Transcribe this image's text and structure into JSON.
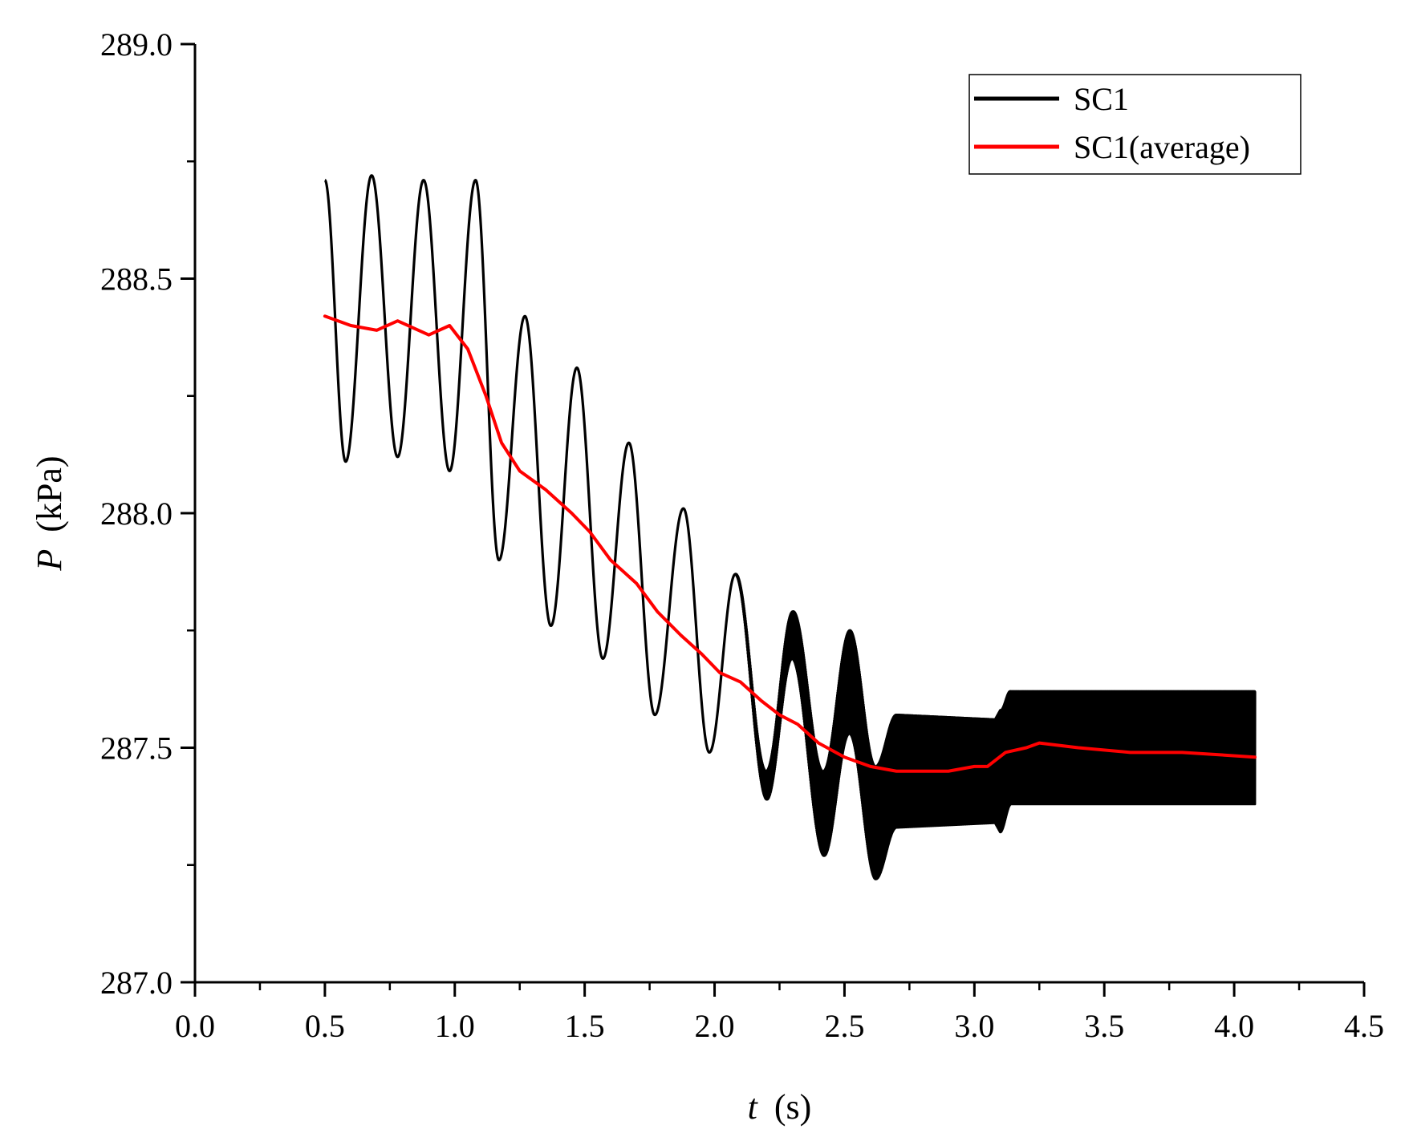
{
  "chart_data": {
    "type": "line",
    "title": "",
    "xlabel": {
      "symbol": "t",
      "unit": "(s)"
    },
    "ylabel": {
      "symbol": "P",
      "unit": "(kPa)"
    },
    "xlim": [
      0.0,
      4.5
    ],
    "ylim": [
      287.0,
      289.0
    ],
    "x_ticks": [
      0.0,
      0.5,
      1.0,
      1.5,
      2.0,
      2.5,
      3.0,
      3.5,
      4.0,
      4.5
    ],
    "x_tick_labels": [
      "0.0",
      "0.5",
      "1.0",
      "1.5",
      "2.0",
      "2.5",
      "3.0",
      "3.5",
      "4.0",
      "4.5"
    ],
    "y_ticks": [
      287.0,
      287.5,
      288.0,
      288.5,
      289.0
    ],
    "y_tick_labels": [
      "287.0",
      "287.5",
      "288.0",
      "288.5",
      "289.0"
    ],
    "x_minor_step": 0.25,
    "y_minor_step": 0.25,
    "grid": false,
    "legend_position": "top-right",
    "series": [
      {
        "name": "SC1",
        "color": "#000000",
        "style": "oscillating-band",
        "x": [
          0.5,
          0.58,
          0.68,
          0.78,
          0.88,
          0.98,
          1.08,
          1.17,
          1.27,
          1.37,
          1.47,
          1.57,
          1.67,
          1.77,
          1.88,
          1.98,
          2.08,
          2.2,
          2.3,
          2.42,
          2.52,
          2.62,
          2.7,
          3.08,
          3.1,
          3.14,
          3.2,
          4.08
        ],
        "values": [
          288.71,
          288.11,
          288.72,
          288.12,
          288.71,
          288.09,
          288.71,
          287.9,
          288.42,
          287.76,
          288.31,
          287.69,
          288.15,
          287.57,
          288.01,
          287.49,
          287.87,
          287.42,
          287.74,
          287.36,
          287.64,
          287.34,
          287.45,
          287.45,
          287.45,
          287.5,
          287.5,
          287.5
        ],
        "band_amplitude": [
          0,
          0,
          0,
          0,
          0,
          0,
          0,
          0,
          0,
          0,
          0,
          0,
          0,
          0,
          0,
          0,
          0,
          0.03,
          0.05,
          0.09,
          0.11,
          0.12,
          0.12,
          0.11,
          0.13,
          0.12,
          0.12,
          0.12
        ]
      },
      {
        "name": "SC1(average)",
        "color": "#ff0000",
        "style": "line",
        "x": [
          0.5,
          0.6,
          0.7,
          0.78,
          0.9,
          0.98,
          1.05,
          1.12,
          1.18,
          1.25,
          1.35,
          1.45,
          1.52,
          1.6,
          1.7,
          1.78,
          1.87,
          1.95,
          2.02,
          2.1,
          2.18,
          2.25,
          2.32,
          2.4,
          2.5,
          2.6,
          2.7,
          2.8,
          2.9,
          3.0,
          3.05,
          3.12,
          3.2,
          3.25,
          3.4,
          3.6,
          3.8,
          4.08
        ],
        "values": [
          288.42,
          288.4,
          288.39,
          288.41,
          288.38,
          288.4,
          288.35,
          288.25,
          288.15,
          288.09,
          288.05,
          288.0,
          287.96,
          287.9,
          287.85,
          287.79,
          287.74,
          287.7,
          287.66,
          287.64,
          287.6,
          287.57,
          287.55,
          287.51,
          287.48,
          287.46,
          287.45,
          287.45,
          287.45,
          287.46,
          287.46,
          287.49,
          287.5,
          287.51,
          287.5,
          287.49,
          287.49,
          287.48
        ]
      }
    ]
  }
}
